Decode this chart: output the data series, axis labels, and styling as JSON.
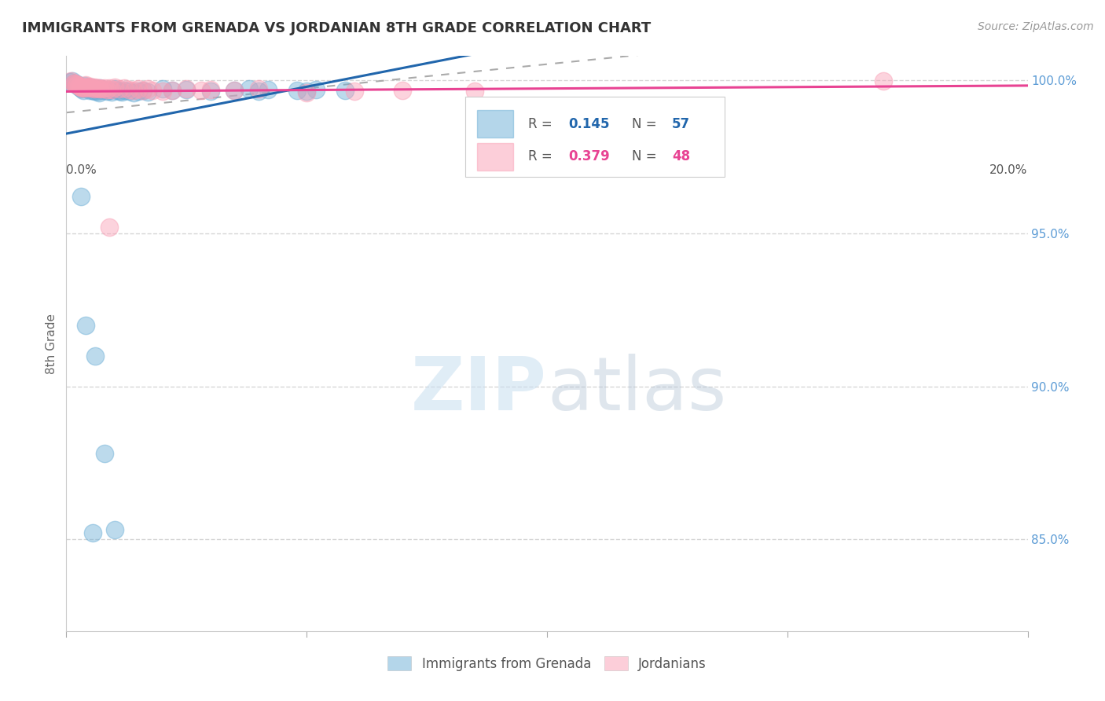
{
  "title": "IMMIGRANTS FROM GRENADA VS JORDANIAN 8TH GRADE CORRELATION CHART",
  "source": "Source: ZipAtlas.com",
  "ylabel": "8th Grade",
  "yaxis_ticks": [
    1.0,
    0.95,
    0.9,
    0.85
  ],
  "yaxis_labels": [
    "100.0%",
    "95.0%",
    "90.0%",
    "85.0%"
  ],
  "xaxis_left_label": "0.0%",
  "xaxis_right_label": "20.0%",
  "legend_blue_label": "Immigrants from Grenada",
  "legend_pink_label": "Jordanians",
  "blue_color": "#6baed6",
  "pink_color": "#fa9fb5",
  "blue_line_color": "#2166ac",
  "pink_line_color": "#e84393",
  "watermark_zip": "ZIP",
  "watermark_atlas": "atlas",
  "xlim": [
    0.0,
    0.2
  ],
  "ylim": [
    0.82,
    1.008
  ],
  "blue_scatter": [
    [
      0.0008,
      0.9995
    ],
    [
      0.0012,
      0.9998
    ],
    [
      0.0015,
      0.9992
    ],
    [
      0.0018,
      0.999
    ],
    [
      0.002,
      0.9985
    ],
    [
      0.0022,
      0.9988
    ],
    [
      0.0025,
      0.9982
    ],
    [
      0.0028,
      0.9978
    ],
    [
      0.003,
      0.9975
    ],
    [
      0.0032,
      0.9972
    ],
    [
      0.0035,
      0.9968
    ],
    [
      0.0038,
      0.9982
    ],
    [
      0.004,
      0.9978
    ],
    [
      0.0042,
      0.9975
    ],
    [
      0.0045,
      0.9972
    ],
    [
      0.0048,
      0.9968
    ],
    [
      0.005,
      0.9978
    ],
    [
      0.0052,
      0.9972
    ],
    [
      0.0055,
      0.9968
    ],
    [
      0.0058,
      0.9965
    ],
    [
      0.006,
      0.9975
    ],
    [
      0.0062,
      0.997
    ],
    [
      0.0065,
      0.9965
    ],
    [
      0.0068,
      0.996
    ],
    [
      0.007,
      0.9975
    ],
    [
      0.0075,
      0.9968
    ],
    [
      0.008,
      0.997
    ],
    [
      0.0085,
      0.9965
    ],
    [
      0.009,
      0.9968
    ],
    [
      0.0095,
      0.9962
    ],
    [
      0.01,
      0.9972
    ],
    [
      0.0105,
      0.9968
    ],
    [
      0.011,
      0.9965
    ],
    [
      0.0115,
      0.9962
    ],
    [
      0.012,
      0.9968
    ],
    [
      0.013,
      0.9965
    ],
    [
      0.014,
      0.996
    ],
    [
      0.015,
      0.9965
    ],
    [
      0.016,
      0.9968
    ],
    [
      0.017,
      0.9962
    ],
    [
      0.02,
      0.9972
    ],
    [
      0.022,
      0.9968
    ],
    [
      0.025,
      0.997
    ],
    [
      0.03,
      0.9965
    ],
    [
      0.035,
      0.9968
    ],
    [
      0.038,
      0.9972
    ],
    [
      0.04,
      0.9965
    ],
    [
      0.042,
      0.997
    ],
    [
      0.048,
      0.9968
    ],
    [
      0.05,
      0.9965
    ],
    [
      0.052,
      0.997
    ],
    [
      0.058,
      0.9968
    ],
    [
      0.003,
      0.962
    ],
    [
      0.006,
      0.91
    ],
    [
      0.008,
      0.878
    ],
    [
      0.01,
      0.853
    ],
    [
      0.0055,
      0.852
    ],
    [
      0.004,
      0.92
    ]
  ],
  "pink_scatter": [
    [
      0.001,
      0.9998
    ],
    [
      0.0015,
      0.9992
    ],
    [
      0.0018,
      0.999
    ],
    [
      0.002,
      0.9988
    ],
    [
      0.0022,
      0.9985
    ],
    [
      0.0025,
      0.9982
    ],
    [
      0.0028,
      0.998
    ],
    [
      0.003,
      0.9978
    ],
    [
      0.0032,
      0.9975
    ],
    [
      0.0035,
      0.9978
    ],
    [
      0.0038,
      0.9975
    ],
    [
      0.004,
      0.9985
    ],
    [
      0.0042,
      0.998
    ],
    [
      0.0045,
      0.9978
    ],
    [
      0.0048,
      0.9975
    ],
    [
      0.005,
      0.998
    ],
    [
      0.0055,
      0.9975
    ],
    [
      0.0058,
      0.9972
    ],
    [
      0.006,
      0.9978
    ],
    [
      0.0065,
      0.9975
    ],
    [
      0.0068,
      0.9972
    ],
    [
      0.007,
      0.9975
    ],
    [
      0.0075,
      0.9972
    ],
    [
      0.008,
      0.9975
    ],
    [
      0.0085,
      0.997
    ],
    [
      0.009,
      0.9975
    ],
    [
      0.0095,
      0.997
    ],
    [
      0.01,
      0.9978
    ],
    [
      0.011,
      0.9972
    ],
    [
      0.012,
      0.9975
    ],
    [
      0.013,
      0.997
    ],
    [
      0.014,
      0.9968
    ],
    [
      0.015,
      0.9972
    ],
    [
      0.016,
      0.9968
    ],
    [
      0.017,
      0.9972
    ],
    [
      0.018,
      0.9968
    ],
    [
      0.02,
      0.9965
    ],
    [
      0.022,
      0.9968
    ],
    [
      0.025,
      0.9972
    ],
    [
      0.028,
      0.9968
    ],
    [
      0.03,
      0.997
    ],
    [
      0.035,
      0.9968
    ],
    [
      0.04,
      0.9972
    ],
    [
      0.05,
      0.996
    ],
    [
      0.06,
      0.9965
    ],
    [
      0.07,
      0.9968
    ],
    [
      0.085,
      0.9965
    ],
    [
      0.17,
      0.9998
    ],
    [
      0.009,
      0.952
    ]
  ]
}
